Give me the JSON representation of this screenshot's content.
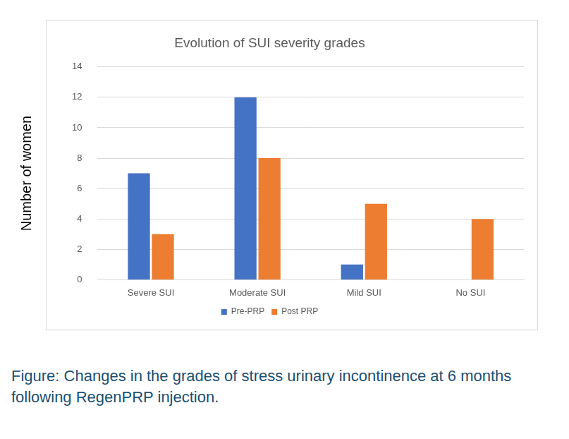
{
  "chart_data": {
    "type": "bar",
    "title": "Evolution of SUI severity grades",
    "y_label": "Number of women",
    "categories": [
      "Severe SUI",
      "Moderate SUI",
      "Mild SUI",
      "No SUI"
    ],
    "series": [
      {
        "name": "Pre-PRP",
        "color": "#4472c4",
        "values": [
          7,
          12,
          1,
          0
        ]
      },
      {
        "name": "Post PRP",
        "color": "#ed7d31",
        "values": [
          3,
          8,
          5,
          4
        ]
      }
    ],
    "ylim": [
      0,
      14
    ],
    "yticks": [
      0,
      2,
      4,
      6,
      8,
      10,
      12,
      14
    ],
    "grid": true,
    "legend": "bottom",
    "caption": "Figure: Changes in the grades of stress urinary incontinence at 6 months following RegenPRP injection."
  }
}
